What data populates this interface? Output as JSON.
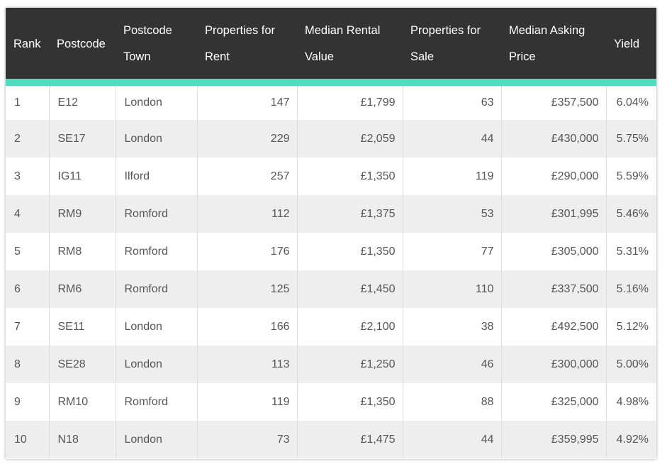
{
  "table": {
    "headers": [
      "Rank",
      "Postcode",
      "Postcode Town",
      "Properties for Rent",
      "Median Rental Value",
      "Properties for Sale",
      "Median Asking Price",
      "Yield"
    ],
    "rows": [
      [
        "1",
        "E12",
        "London",
        "147",
        "£1,799",
        "63",
        "£357,500",
        "6.04%"
      ],
      [
        "2",
        "SE17",
        "London",
        "229",
        "£2,059",
        "44",
        "£430,000",
        "5.75%"
      ],
      [
        "3",
        "IG11",
        "Ilford",
        "257",
        "£1,350",
        "119",
        "£290,000",
        "5.59%"
      ],
      [
        "4",
        "RM9",
        "Romford",
        "112",
        "£1,375",
        "53",
        "£301,995",
        "5.46%"
      ],
      [
        "5",
        "RM8",
        "Romford",
        "176",
        "£1,350",
        "77",
        "£305,000",
        "5.31%"
      ],
      [
        "6",
        "RM6",
        "Romford",
        "125",
        "£1,450",
        "110",
        "£337,500",
        "5.16%"
      ],
      [
        "7",
        "SE11",
        "London",
        "166",
        "£2,100",
        "38",
        "£492,500",
        "5.12%"
      ],
      [
        "8",
        "SE28",
        "London",
        "113",
        "£1,250",
        "46",
        "£300,000",
        "5.00%"
      ],
      [
        "9",
        "RM10",
        "Romford",
        "119",
        "£1,350",
        "88",
        "£325,000",
        "4.98%"
      ],
      [
        "10",
        "N18",
        "London",
        "73",
        "£1,475",
        "44",
        "£359,995",
        "4.92%"
      ]
    ]
  },
  "colors": {
    "header_bg": "#333333",
    "header_text": "#ffffff",
    "accent_stripe": "#4fdcc0",
    "row_alt_bg": "#eeeeee",
    "cell_text": "#555555"
  }
}
